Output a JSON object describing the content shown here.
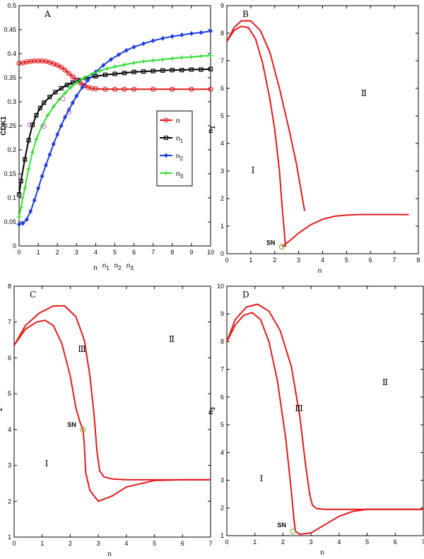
{
  "chart_data": [
    {
      "panel_label": "A",
      "type": "line",
      "ylabel": "CDK1",
      "xlabel_parts": [
        "n",
        "n",
        "1",
        "n",
        "2",
        "n",
        "3"
      ],
      "xlim": [
        0,
        10
      ],
      "ylim": [
        0,
        0.5
      ],
      "xticks": [
        "0",
        "1",
        "2",
        "3",
        "4",
        "5",
        "6",
        "7",
        "8",
        "9",
        "10"
      ],
      "yticks": [
        "0",
        "0.05",
        "0.1",
        "0.15",
        "0.2",
        "0.25",
        "0.3",
        "0.35",
        "0.4",
        "0.45",
        "0.5"
      ],
      "legend": {
        "position": "center-right",
        "entries": [
          {
            "base": "n",
            "sub": ""
          },
          {
            "base": "n",
            "sub": "1"
          },
          {
            "base": "n",
            "sub": "2"
          },
          {
            "base": "n",
            "sub": "3"
          }
        ]
      },
      "series": [
        {
          "key": "n",
          "color": "#e01b1b",
          "marker": "circle",
          "x": [
            0,
            0.2,
            0.4,
            0.6,
            0.8,
            1.0,
            1.2,
            1.4,
            1.6,
            1.8,
            2.0,
            2.2,
            2.4,
            2.6,
            2.8,
            3.0,
            3.2,
            3.4,
            3.6,
            3.8,
            4.0,
            4.5,
            5.0,
            5.5,
            6.0,
            7.0,
            8.0,
            9.0,
            10.0
          ],
          "y": [
            0.38,
            0.381,
            0.383,
            0.384,
            0.385,
            0.385,
            0.385,
            0.384,
            0.382,
            0.379,
            0.376,
            0.372,
            0.366,
            0.359,
            0.352,
            0.345,
            0.339,
            0.334,
            0.33,
            0.328,
            0.327,
            0.326,
            0.326,
            0.326,
            0.326,
            0.326,
            0.326,
            0.326,
            0.326
          ]
        },
        {
          "key": "n1",
          "color": "#000000",
          "marker": "square",
          "x": [
            0,
            0.1,
            0.3,
            0.5,
            0.7,
            0.9,
            1.1,
            1.3,
            1.6,
            1.9,
            2.2,
            2.5,
            2.8,
            3.1,
            3.5,
            4.0,
            4.5,
            5.0,
            5.5,
            6.0,
            6.5,
            7.0,
            7.5,
            8.0,
            8.5,
            9.0,
            9.5,
            10.0
          ],
          "y": [
            0.107,
            0.135,
            0.18,
            0.22,
            0.252,
            0.272,
            0.287,
            0.298,
            0.31,
            0.32,
            0.328,
            0.335,
            0.34,
            0.345,
            0.349,
            0.353,
            0.356,
            0.358,
            0.36,
            0.362,
            0.363,
            0.364,
            0.365,
            0.366,
            0.366,
            0.367,
            0.367,
            0.368
          ]
        },
        {
          "key": "n2",
          "color": "#1f3fdd",
          "marker": "diamond",
          "x": [
            0,
            0.2,
            0.4,
            0.6,
            0.8,
            1.0,
            1.2,
            1.4,
            1.6,
            1.8,
            2.0,
            2.2,
            2.4,
            2.6,
            2.8,
            3.0,
            3.3,
            3.6,
            4.0,
            4.4,
            4.8,
            5.2,
            5.6,
            6.0,
            6.5,
            7.0,
            7.5,
            8.0,
            8.5,
            9.0,
            9.5,
            10.0
          ],
          "y": [
            0.045,
            0.047,
            0.055,
            0.072,
            0.095,
            0.12,
            0.145,
            0.168,
            0.19,
            0.212,
            0.232,
            0.25,
            0.268,
            0.283,
            0.298,
            0.312,
            0.33,
            0.345,
            0.362,
            0.376,
            0.388,
            0.398,
            0.407,
            0.414,
            0.421,
            0.427,
            0.432,
            0.436,
            0.439,
            0.442,
            0.444,
            0.447
          ]
        },
        {
          "key": "n3",
          "color": "#33dd33",
          "marker": "plus",
          "x": [
            0,
            0.1,
            0.3,
            0.5,
            0.7,
            0.9,
            1.2,
            1.5,
            1.8,
            2.1,
            2.4,
            2.7,
            3.0,
            3.4,
            3.8,
            4.2,
            4.6,
            5.0,
            5.5,
            6.0,
            6.5,
            7.0,
            7.5,
            8.0,
            8.5,
            9.0,
            9.5,
            10.0
          ],
          "y": [
            0.06,
            0.08,
            0.12,
            0.16,
            0.195,
            0.222,
            0.25,
            0.272,
            0.29,
            0.305,
            0.318,
            0.33,
            0.34,
            0.35,
            0.358,
            0.364,
            0.369,
            0.373,
            0.377,
            0.381,
            0.384,
            0.386,
            0.388,
            0.39,
            0.392,
            0.393,
            0.395,
            0.396
          ]
        }
      ],
      "special_points": [
        {
          "x": 0.55,
          "y": 0.252
        },
        {
          "x": 1.3,
          "y": 0.249
        },
        {
          "x": 2.3,
          "y": 0.306
        },
        {
          "x": 2.6,
          "y": 0.278
        },
        {
          "x": 2.9,
          "y": 0.348
        }
      ]
    },
    {
      "panel_label": "B",
      "type": "line",
      "ylabel_base": "n",
      "ylabel_sub": "1",
      "xlabel": "n",
      "xlim": [
        0,
        8
      ],
      "ylim": [
        0,
        9
      ],
      "xticks": [
        "0",
        "1",
        "2",
        "3",
        "4",
        "5",
        "6",
        "7",
        "8"
      ],
      "yticks": [
        "0",
        "1",
        "2",
        "3",
        "4",
        "5",
        "6",
        "7",
        "8",
        "9"
      ],
      "region_labels": [
        "Ⅰ",
        "Ⅱ"
      ],
      "sn_label": "SN",
      "sn_point": {
        "x": 2.3,
        "y": 0.25
      },
      "curves": [
        {
          "x": [
            0,
            0.3,
            0.6,
            0.9,
            1.2,
            1.5,
            1.8,
            2.0,
            2.2,
            2.3,
            2.4,
            2.45
          ],
          "y": [
            7.7,
            8.1,
            8.25,
            8.2,
            7.8,
            6.9,
            5.6,
            4.5,
            3.0,
            1.8,
            0.8,
            0.25
          ]
        },
        {
          "x": [
            0,
            0.3,
            0.6,
            1.0,
            1.4,
            1.8,
            2.2,
            2.6,
            2.9,
            3.1,
            3.2,
            3.25
          ],
          "y": [
            7.7,
            8.2,
            8.45,
            8.45,
            8.1,
            7.3,
            6.0,
            4.5,
            3.3,
            2.3,
            1.8,
            1.55
          ]
        },
        {
          "x": [
            2.3,
            2.6,
            3.0,
            3.5,
            4.0,
            4.5,
            5.0,
            5.5,
            6.0,
            7.0,
            7.6
          ],
          "y": [
            0.25,
            0.45,
            0.75,
            1.05,
            1.25,
            1.36,
            1.4,
            1.42,
            1.42,
            1.42,
            1.42
          ]
        }
      ]
    },
    {
      "panel_label": "C",
      "type": "line",
      "ylabel_base": "n",
      "ylabel_sub": "2",
      "xlabel": "n",
      "xlim": [
        0,
        7
      ],
      "ylim": [
        1,
        8
      ],
      "xticks": [
        "0",
        "1",
        "2",
        "3",
        "4",
        "5",
        "6",
        "7"
      ],
      "yticks": [
        "1",
        "2",
        "3",
        "4",
        "5",
        "6",
        "7",
        "8"
      ],
      "region_labels": [
        "Ⅰ",
        "Ⅱ",
        "Ⅲ"
      ],
      "sn_label": "SN",
      "sn_point": {
        "x": 2.45,
        "y": 4.0
      },
      "curves": [
        {
          "x": [
            0,
            0.4,
            0.8,
            1.1,
            1.4,
            1.7,
            2.0,
            2.2,
            2.35,
            2.45,
            2.5,
            2.55,
            2.7,
            3.0,
            3.5,
            4.0,
            5.0,
            6.0,
            7.0
          ],
          "y": [
            6.35,
            6.8,
            7.0,
            7.05,
            6.9,
            6.4,
            5.5,
            4.6,
            4.2,
            4.0,
            3.6,
            2.8,
            2.3,
            2.0,
            2.15,
            2.4,
            2.58,
            2.6,
            2.6
          ]
        },
        {
          "x": [
            0,
            0.4,
            0.9,
            1.4,
            1.8,
            2.2,
            2.5,
            2.7,
            2.85,
            2.95,
            3.05,
            3.2,
            3.5,
            4.0,
            4.5,
            5.0,
            6.0,
            7.0
          ],
          "y": [
            6.35,
            6.9,
            7.25,
            7.45,
            7.45,
            7.15,
            6.5,
            5.5,
            4.4,
            3.4,
            2.85,
            2.68,
            2.62,
            2.6,
            2.6,
            2.6,
            2.6,
            2.6
          ]
        }
      ]
    },
    {
      "panel_label": "D",
      "type": "line",
      "ylabel_base": "n",
      "ylabel_sub": "3",
      "xlabel": "n",
      "xlim": [
        0,
        7
      ],
      "ylim": [
        1,
        10
      ],
      "xticks": [
        "0",
        "1",
        "2",
        "3",
        "4",
        "5",
        "6",
        "7"
      ],
      "yticks": [
        "1",
        "2",
        "3",
        "4",
        "5",
        "6",
        "7",
        "8",
        "9",
        "10"
      ],
      "region_labels": [
        "Ⅰ",
        "Ⅱ",
        "Ⅲ"
      ],
      "sn_label": "SN",
      "sn_point": {
        "x": 2.35,
        "y": 1.15
      },
      "curves": [
        {
          "x": [
            0,
            0.3,
            0.6,
            0.9,
            1.2,
            1.5,
            1.8,
            2.1,
            2.3,
            2.4,
            2.45,
            2.6,
            3.0,
            3.5,
            4.0,
            4.5,
            5.0,
            6.0,
            7.0
          ],
          "y": [
            8.0,
            8.6,
            8.95,
            9.05,
            8.8,
            8.0,
            6.6,
            4.5,
            2.6,
            1.5,
            1.15,
            1.05,
            1.1,
            1.4,
            1.7,
            1.88,
            1.95,
            1.95,
            1.95
          ]
        },
        {
          "x": [
            0,
            0.3,
            0.7,
            1.1,
            1.5,
            1.9,
            2.3,
            2.6,
            2.8,
            2.95,
            3.05,
            3.2,
            3.5,
            4.0,
            4.5,
            5.0,
            6.0,
            7.0
          ],
          "y": [
            8.0,
            8.8,
            9.25,
            9.35,
            9.1,
            8.4,
            7.1,
            5.3,
            3.6,
            2.5,
            2.1,
            1.98,
            1.95,
            1.95,
            1.95,
            1.95,
            1.95,
            1.95
          ]
        }
      ]
    }
  ]
}
